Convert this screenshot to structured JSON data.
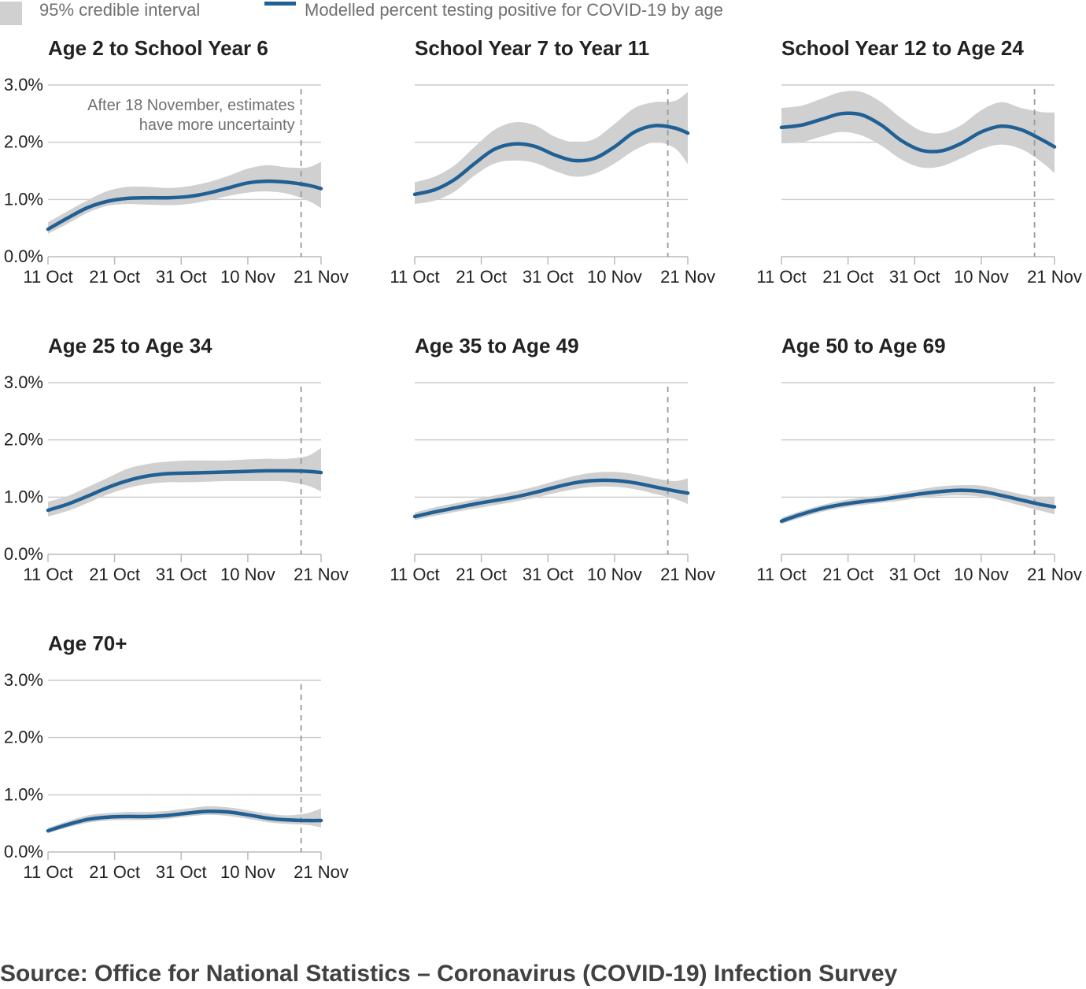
{
  "legend": {
    "band_label": "95% credible interval",
    "line_label": "Modelled percent testing positive for COVID-19 by age"
  },
  "source": "Source: Office for National Statistics – Coronavirus (COVID-19) Infection Survey",
  "colors": {
    "line": "#206095",
    "band": "#d0d0d0",
    "grid": "#cccccc",
    "cutoff": "#999999"
  },
  "chart_data": [
    {
      "type": "area",
      "title": "Age 2 to School Year 6",
      "x_ticks": [
        "11 Oct",
        "21 Oct",
        "31 Oct",
        "10 Nov",
        "21 Nov"
      ],
      "y_ticks": [
        "0.0%",
        "1.0%",
        "2.0%",
        "3.0%"
      ],
      "ylim": [
        0,
        3
      ],
      "xlim": [
        "2020-10-11",
        "2020-11-21"
      ],
      "cutoff_date": "2020-11-18",
      "annotation": [
        "After 18 November, estimates",
        "have more uncertainty"
      ],
      "series": [
        {
          "x": [
            "2020-10-11",
            "2020-10-14",
            "2020-10-17",
            "2020-10-20",
            "2020-10-23",
            "2020-10-26",
            "2020-10-29",
            "2020-11-01",
            "2020-11-04",
            "2020-11-07",
            "2020-11-10",
            "2020-11-13",
            "2020-11-16",
            "2020-11-19",
            "2020-11-21"
          ],
          "y": [
            0.48,
            0.68,
            0.86,
            0.97,
            1.02,
            1.03,
            1.03,
            1.05,
            1.11,
            1.2,
            1.29,
            1.32,
            1.3,
            1.25,
            1.19
          ],
          "lower": [
            0.4,
            0.58,
            0.77,
            0.89,
            0.92,
            0.91,
            0.9,
            0.92,
            0.98,
            1.06,
            1.12,
            1.14,
            1.1,
            0.98,
            0.85
          ],
          "upper": [
            0.6,
            0.8,
            0.99,
            1.15,
            1.22,
            1.22,
            1.2,
            1.23,
            1.3,
            1.41,
            1.54,
            1.6,
            1.56,
            1.56,
            1.66
          ]
        }
      ]
    },
    {
      "type": "area",
      "title": "School Year 7 to Year 11",
      "x_ticks": [
        "11 Oct",
        "21 Oct",
        "31 Oct",
        "10 Nov",
        "21 Nov"
      ],
      "y_ticks": [],
      "ylim": [
        0,
        3
      ],
      "xlim": [
        "2020-10-11",
        "2020-11-21"
      ],
      "cutoff_date": "2020-11-18",
      "series": [
        {
          "x": [
            "2020-10-11",
            "2020-10-14",
            "2020-10-17",
            "2020-10-20",
            "2020-10-23",
            "2020-10-26",
            "2020-10-29",
            "2020-11-01",
            "2020-11-04",
            "2020-11-07",
            "2020-11-10",
            "2020-11-13",
            "2020-11-16",
            "2020-11-19",
            "2020-11-21"
          ],
          "y": [
            1.09,
            1.17,
            1.35,
            1.63,
            1.88,
            1.97,
            1.93,
            1.78,
            1.68,
            1.72,
            1.92,
            2.18,
            2.29,
            2.25,
            2.16
          ],
          "lower": [
            0.92,
            0.98,
            1.14,
            1.42,
            1.63,
            1.68,
            1.64,
            1.5,
            1.4,
            1.45,
            1.63,
            1.86,
            2.0,
            1.9,
            1.62
          ],
          "upper": [
            1.3,
            1.4,
            1.6,
            1.92,
            2.22,
            2.35,
            2.3,
            2.1,
            2.0,
            2.06,
            2.32,
            2.6,
            2.7,
            2.72,
            2.88
          ]
        }
      ]
    },
    {
      "type": "area",
      "title": "School Year 12 to Age 24",
      "x_ticks": [
        "11 Oct",
        "21 Oct",
        "31 Oct",
        "10 Nov",
        "21 Nov"
      ],
      "y_ticks": [],
      "ylim": [
        0,
        3
      ],
      "xlim": [
        "2020-10-11",
        "2020-11-21"
      ],
      "cutoff_date": "2020-11-18",
      "series": [
        {
          "x": [
            "2020-10-11",
            "2020-10-14",
            "2020-10-17",
            "2020-10-20",
            "2020-10-23",
            "2020-10-26",
            "2020-10-29",
            "2020-11-01",
            "2020-11-04",
            "2020-11-07",
            "2020-11-10",
            "2020-11-13",
            "2020-11-16",
            "2020-11-19",
            "2020-11-21"
          ],
          "y": [
            2.26,
            2.3,
            2.4,
            2.5,
            2.48,
            2.3,
            2.03,
            1.86,
            1.85,
            1.98,
            2.18,
            2.28,
            2.22,
            2.05,
            1.92
          ],
          "lower": [
            1.98,
            2.0,
            2.1,
            2.18,
            2.12,
            1.94,
            1.7,
            1.56,
            1.58,
            1.72,
            1.88,
            1.96,
            1.88,
            1.66,
            1.46
          ],
          "upper": [
            2.6,
            2.64,
            2.76,
            2.88,
            2.88,
            2.7,
            2.42,
            2.2,
            2.16,
            2.3,
            2.56,
            2.7,
            2.6,
            2.53,
            2.52
          ]
        }
      ]
    },
    {
      "type": "area",
      "title": "Age 25 to Age 34",
      "x_ticks": [
        "11 Oct",
        "21 Oct",
        "31 Oct",
        "10 Nov",
        "21 Nov"
      ],
      "y_ticks": [
        "0.0%",
        "1.0%",
        "2.0%",
        "3.0%"
      ],
      "ylim": [
        0,
        3
      ],
      "xlim": [
        "2020-10-11",
        "2020-11-21"
      ],
      "cutoff_date": "2020-11-18",
      "series": [
        {
          "x": [
            "2020-10-11",
            "2020-10-14",
            "2020-10-17",
            "2020-10-20",
            "2020-10-23",
            "2020-10-26",
            "2020-10-29",
            "2020-11-01",
            "2020-11-04",
            "2020-11-07",
            "2020-11-10",
            "2020-11-13",
            "2020-11-16",
            "2020-11-19",
            "2020-11-21"
          ],
          "y": [
            0.77,
            0.88,
            1.02,
            1.17,
            1.29,
            1.37,
            1.41,
            1.42,
            1.43,
            1.44,
            1.45,
            1.46,
            1.46,
            1.45,
            1.43
          ],
          "lower": [
            0.66,
            0.76,
            0.9,
            1.05,
            1.16,
            1.23,
            1.26,
            1.26,
            1.27,
            1.28,
            1.28,
            1.28,
            1.27,
            1.2,
            1.1
          ],
          "upper": [
            0.92,
            1.02,
            1.18,
            1.34,
            1.5,
            1.58,
            1.62,
            1.64,
            1.64,
            1.64,
            1.66,
            1.67,
            1.67,
            1.72,
            1.86
          ]
        }
      ]
    },
    {
      "type": "area",
      "title": "Age 35 to Age 49",
      "x_ticks": [
        "11 Oct",
        "21 Oct",
        "31 Oct",
        "10 Nov",
        "21 Nov"
      ],
      "y_ticks": [],
      "ylim": [
        0,
        3
      ],
      "xlim": [
        "2020-10-11",
        "2020-11-21"
      ],
      "cutoff_date": "2020-11-18",
      "series": [
        {
          "x": [
            "2020-10-11",
            "2020-10-14",
            "2020-10-17",
            "2020-10-20",
            "2020-10-23",
            "2020-10-26",
            "2020-10-29",
            "2020-11-01",
            "2020-11-04",
            "2020-11-07",
            "2020-11-10",
            "2020-11-13",
            "2020-11-16",
            "2020-11-19",
            "2020-11-21"
          ],
          "y": [
            0.66,
            0.74,
            0.81,
            0.88,
            0.94,
            1.0,
            1.08,
            1.17,
            1.25,
            1.29,
            1.29,
            1.25,
            1.18,
            1.11,
            1.07
          ],
          "lower": [
            0.6,
            0.67,
            0.74,
            0.8,
            0.86,
            0.92,
            0.99,
            1.07,
            1.14,
            1.18,
            1.18,
            1.14,
            1.06,
            0.97,
            0.88
          ],
          "upper": [
            0.73,
            0.82,
            0.89,
            0.96,
            1.03,
            1.1,
            1.18,
            1.28,
            1.37,
            1.43,
            1.44,
            1.4,
            1.33,
            1.28,
            1.33
          ]
        }
      ]
    },
    {
      "type": "area",
      "title": "Age 50 to Age 69",
      "x_ticks": [
        "11 Oct",
        "21 Oct",
        "31 Oct",
        "10 Nov",
        "21 Nov"
      ],
      "y_ticks": [],
      "ylim": [
        0,
        3
      ],
      "xlim": [
        "2020-10-11",
        "2020-11-21"
      ],
      "cutoff_date": "2020-11-18",
      "series": [
        {
          "x": [
            "2020-10-11",
            "2020-10-14",
            "2020-10-17",
            "2020-10-20",
            "2020-10-23",
            "2020-10-26",
            "2020-10-29",
            "2020-11-01",
            "2020-11-04",
            "2020-11-07",
            "2020-11-10",
            "2020-11-13",
            "2020-11-16",
            "2020-11-19",
            "2020-11-21"
          ],
          "y": [
            0.58,
            0.7,
            0.8,
            0.87,
            0.92,
            0.96,
            1.01,
            1.06,
            1.1,
            1.12,
            1.1,
            1.03,
            0.95,
            0.87,
            0.83
          ],
          "lower": [
            0.53,
            0.64,
            0.74,
            0.81,
            0.86,
            0.9,
            0.94,
            0.99,
            1.02,
            1.03,
            1.01,
            0.94,
            0.85,
            0.76,
            0.7
          ],
          "upper": [
            0.64,
            0.76,
            0.86,
            0.94,
            0.99,
            1.03,
            1.08,
            1.14,
            1.19,
            1.21,
            1.2,
            1.13,
            1.05,
            0.99,
            1.0
          ]
        }
      ]
    },
    {
      "type": "area",
      "title": "Age 70+",
      "x_ticks": [
        "11 Oct",
        "21 Oct",
        "31 Oct",
        "10 Nov",
        "21 Nov"
      ],
      "y_ticks": [
        "0.0%",
        "1.0%",
        "2.0%",
        "3.0%"
      ],
      "ylim": [
        0,
        3
      ],
      "xlim": [
        "2020-10-11",
        "2020-11-21"
      ],
      "cutoff_date": "2020-11-18",
      "series": [
        {
          "x": [
            "2020-10-11",
            "2020-10-14",
            "2020-10-17",
            "2020-10-20",
            "2020-10-23",
            "2020-10-26",
            "2020-10-29",
            "2020-11-01",
            "2020-11-04",
            "2020-11-07",
            "2020-11-10",
            "2020-11-13",
            "2020-11-16",
            "2020-11-19",
            "2020-11-21"
          ],
          "y": [
            0.37,
            0.48,
            0.57,
            0.61,
            0.62,
            0.62,
            0.64,
            0.68,
            0.71,
            0.7,
            0.65,
            0.59,
            0.56,
            0.55,
            0.55
          ],
          "lower": [
            0.33,
            0.43,
            0.51,
            0.55,
            0.56,
            0.56,
            0.58,
            0.62,
            0.65,
            0.63,
            0.58,
            0.52,
            0.49,
            0.47,
            0.43
          ],
          "upper": [
            0.42,
            0.54,
            0.64,
            0.68,
            0.7,
            0.7,
            0.72,
            0.76,
            0.8,
            0.78,
            0.73,
            0.67,
            0.64,
            0.68,
            0.76
          ]
        }
      ]
    }
  ]
}
